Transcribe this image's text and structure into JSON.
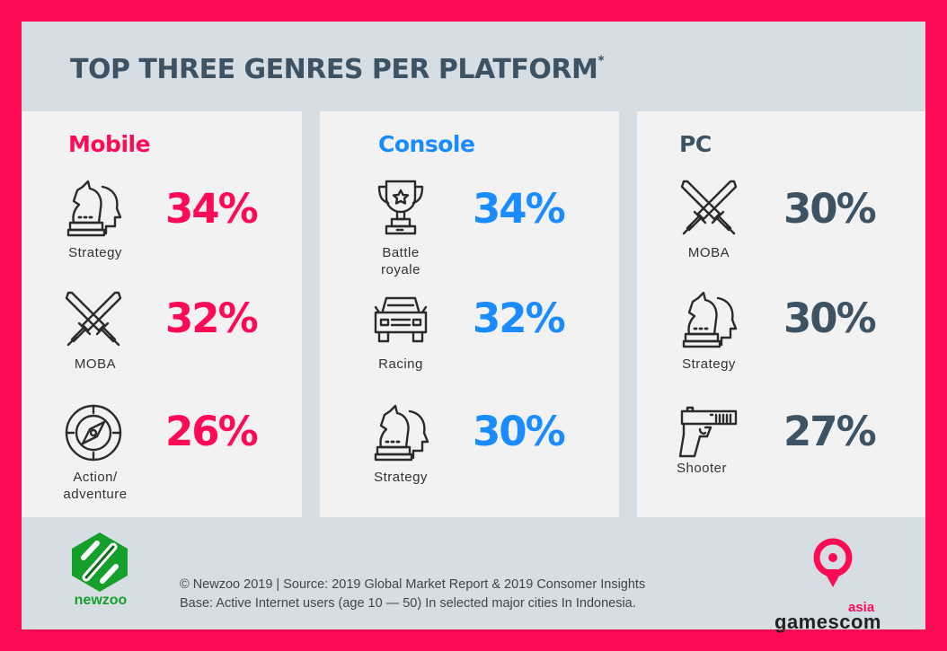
{
  "title": "TOP THREE GENRES PER PLATFORM",
  "title_mark": "*",
  "colors": {
    "mobile": "#ff0a54",
    "console": "#1a8cff",
    "pc": "#3d5363",
    "border": "#ff0a54",
    "newzoo": "#15a02b"
  },
  "platforms": [
    {
      "name": "Mobile",
      "genres": [
        {
          "label": "Strategy",
          "value": "34%",
          "icon": "chess-knight-head-icon"
        },
        {
          "label": "MOBA",
          "value": "32%",
          "icon": "crossed-swords-icon"
        },
        {
          "label": "Action/\nadventure",
          "value": "26%",
          "icon": "compass-icon"
        }
      ]
    },
    {
      "name": "Console",
      "genres": [
        {
          "label": "Battle\nroyale",
          "value": "34%",
          "icon": "trophy-icon"
        },
        {
          "label": "Racing",
          "value": "32%",
          "icon": "car-icon"
        },
        {
          "label": "Strategy",
          "value": "30%",
          "icon": "chess-knight-head-icon"
        }
      ]
    },
    {
      "name": "PC",
      "genres": [
        {
          "label": "MOBA",
          "value": "30%",
          "icon": "crossed-swords-icon"
        },
        {
          "label": "Strategy",
          "value": "30%",
          "icon": "chess-knight-head-icon"
        },
        {
          "label": "Shooter",
          "value": "27%",
          "icon": "pistol-icon"
        }
      ]
    }
  ],
  "footer": {
    "source_line": "© Newzoo 2019 | Source: 2019 Global Market Report & 2019 Consomer Insights",
    "base_line": "Base: Active Internet users (age 10 — 50) In selected major cities In Indonesia."
  },
  "logos": {
    "newzoo": "newzoo",
    "gamescom_region": "asia",
    "gamescom": "gamescom"
  }
}
